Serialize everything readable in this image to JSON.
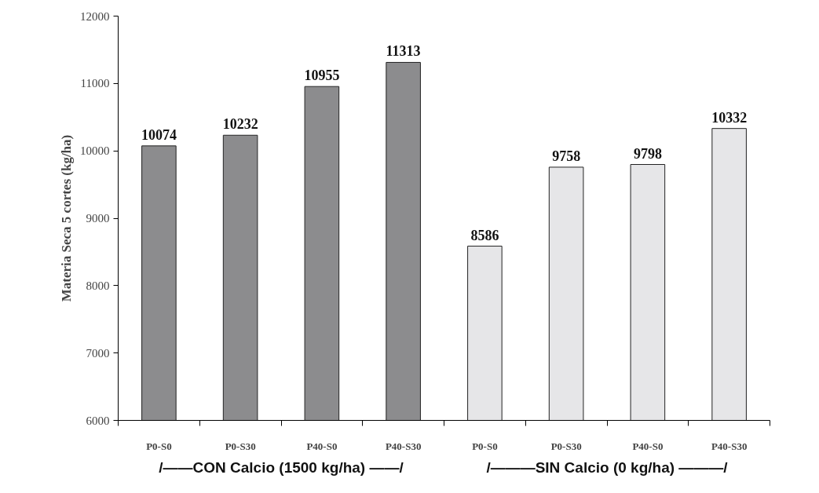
{
  "chart_data": {
    "type": "bar",
    "ylabel": "Materia Seca 5 cortes (kg/ha)",
    "categories": [
      "P0-S0",
      "P0-S30",
      "P40-S0",
      "P40-S30",
      "P0-S0",
      "P0-S30",
      "P40-S0",
      "P40-S30"
    ],
    "values": [
      10074,
      10232,
      10955,
      11313,
      8586,
      9758,
      9798,
      10332
    ],
    "colors": [
      "#8c8c8e",
      "#8c8c8e",
      "#8c8c8e",
      "#8c8c8e",
      "#e6e6e8",
      "#e6e6e8",
      "#e6e6e8",
      "#e6e6e8"
    ],
    "ylim": [
      6000,
      12000
    ],
    "yticks": [
      6000,
      7000,
      8000,
      9000,
      10000,
      11000,
      12000
    ],
    "data_labels": true,
    "grid": false,
    "annotations": [
      "/——CON Calcio (1500 kg/ha) ——/",
      "/———SIN Calcio (0 kg/ha) ———/"
    ]
  }
}
